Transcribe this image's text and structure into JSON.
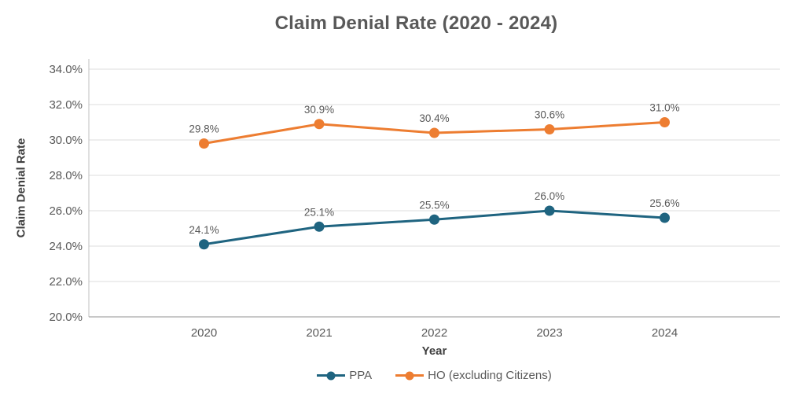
{
  "title": "Claim Denial Rate (2020 - 2024)",
  "chart_data": {
    "type": "line",
    "title": "Claim Denial Rate (2020 - 2024)",
    "xlabel": "Year",
    "ylabel": "Claim Denial Rate",
    "categories": [
      "2020",
      "2021",
      "2022",
      "2023",
      "2024"
    ],
    "series": [
      {
        "name": "PPA",
        "color": "#1F6480",
        "values": [
          24.1,
          25.1,
          25.5,
          26.0,
          25.6
        ],
        "labels": [
          "24.1%",
          "25.1%",
          "25.5%",
          "26.0%",
          "25.6%"
        ]
      },
      {
        "name": "HO (excluding Citizens)",
        "color": "#ED7D31",
        "values": [
          29.8,
          30.9,
          30.4,
          30.6,
          31.0
        ],
        "labels": [
          "29.8%",
          "30.9%",
          "30.4%",
          "30.6%",
          "31.0%"
        ]
      }
    ],
    "ylim": [
      20,
      34
    ],
    "ytick_step": 2,
    "ytick_labels": [
      "20.0%",
      "22.0%",
      "24.0%",
      "26.0%",
      "28.0%",
      "30.0%",
      "32.0%",
      "34.0%"
    ],
    "grid": true,
    "legend_position": "bottom"
  },
  "style": {
    "gridline_color": "#DEDEDE",
    "axis_line_color": "#BFBFBF",
    "bottom_axis_color": "#A6A6A6",
    "tick_label_color": "#595959",
    "data_label_color": "#595959"
  }
}
